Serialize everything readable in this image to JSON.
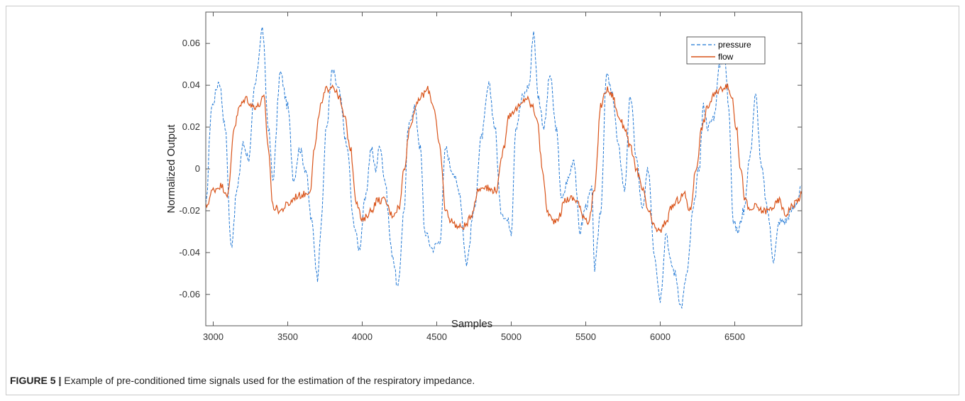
{
  "figure": {
    "label": "FIGURE 5 |",
    "caption": "Example of pre-conditioned time signals used for the estimation of the respiratory impedance."
  },
  "chart_data": {
    "type": "line",
    "title": "",
    "xlabel": "Samples",
    "ylabel": "Normalized Output",
    "xlim": [
      2950,
      6950
    ],
    "ylim": [
      -0.075,
      0.075
    ],
    "xticks": [
      3000,
      3500,
      4000,
      4500,
      5000,
      5500,
      6000,
      6500
    ],
    "yticks": [
      -0.06,
      -0.04,
      -0.02,
      0,
      0.02,
      0.04,
      0.06
    ],
    "ytick_labels": [
      "-0.06",
      "-0.04",
      "-0.02",
      "0",
      "0.02",
      "0.04",
      "0.06"
    ],
    "grid": false,
    "legend_position": "top-right",
    "series": [
      {
        "name": "pressure",
        "color": "#1f77d4",
        "style": "dashed",
        "x": [
          2950,
          2990,
          3040,
          3080,
          3120,
          3160,
          3200,
          3240,
          3280,
          3330,
          3370,
          3400,
          3450,
          3500,
          3540,
          3580,
          3620,
          3660,
          3700,
          3720,
          3760,
          3800,
          3840,
          3900,
          3940,
          3980,
          4020,
          4060,
          4090,
          4120,
          4150,
          4200,
          4240,
          4280,
          4310,
          4350,
          4390,
          4420,
          4470,
          4520,
          4560,
          4600,
          4650,
          4700,
          4750,
          4800,
          4850,
          4890,
          4930,
          4980,
          5000,
          5030,
          5080,
          5120,
          5150,
          5180,
          5220,
          5260,
          5300,
          5340,
          5380,
          5420,
          5460,
          5500,
          5540,
          5560,
          5600,
          5640,
          5680,
          5720,
          5760,
          5800,
          5840,
          5880,
          5920,
          5960,
          6000,
          6040,
          6070,
          6100,
          6140,
          6180,
          6220,
          6260,
          6290,
          6320,
          6360,
          6400,
          6430,
          6460,
          6490,
          6520,
          6560,
          6600,
          6640,
          6680,
          6720,
          6760,
          6800,
          6840,
          6880,
          6920,
          6950
        ],
        "values": [
          -0.018,
          0.03,
          0.042,
          0.02,
          -0.037,
          -0.01,
          0.012,
          0.005,
          0.04,
          0.067,
          0.02,
          -0.005,
          0.046,
          0.03,
          -0.005,
          0.01,
          0.0,
          -0.025,
          -0.052,
          -0.03,
          0.02,
          0.047,
          0.038,
          0.01,
          -0.025,
          -0.038,
          -0.015,
          0.01,
          0.0,
          0.012,
          -0.005,
          -0.04,
          -0.057,
          -0.02,
          0.02,
          0.03,
          0.01,
          -0.03,
          -0.038,
          -0.035,
          0.01,
          0.0,
          -0.01,
          -0.045,
          -0.02,
          0.015,
          0.04,
          0.02,
          -0.02,
          -0.025,
          -0.03,
          0.02,
          0.035,
          0.04,
          0.066,
          0.035,
          0.02,
          0.045,
          0.02,
          -0.015,
          -0.005,
          0.005,
          -0.03,
          -0.018,
          -0.01,
          -0.048,
          -0.02,
          0.045,
          0.035,
          0.01,
          -0.01,
          0.035,
          0.005,
          -0.02,
          0.0,
          -0.04,
          -0.062,
          -0.03,
          -0.045,
          -0.05,
          -0.066,
          -0.05,
          -0.02,
          0.0,
          0.03,
          0.02,
          0.025,
          0.05,
          0.055,
          0.03,
          -0.025,
          -0.03,
          -0.02,
          0.005,
          0.035,
          0.0,
          -0.02,
          -0.043,
          -0.025,
          -0.025,
          -0.02,
          -0.015,
          -0.008
        ]
      },
      {
        "name": "flow",
        "color": "#d95319",
        "style": "solid",
        "x": [
          2950,
          3000,
          3050,
          3100,
          3140,
          3180,
          3220,
          3260,
          3300,
          3340,
          3370,
          3400,
          3450,
          3500,
          3560,
          3620,
          3650,
          3680,
          3720,
          3760,
          3800,
          3840,
          3880,
          3920,
          3960,
          4000,
          4060,
          4100,
          4150,
          4200,
          4250,
          4280,
          4320,
          4360,
          4400,
          4440,
          4480,
          4520,
          4560,
          4600,
          4650,
          4700,
          4730,
          4780,
          4820,
          4860,
          4900,
          4950,
          4980,
          5020,
          5060,
          5100,
          5140,
          5170,
          5210,
          5240,
          5280,
          5320,
          5360,
          5400,
          5440,
          5480,
          5520,
          5560,
          5600,
          5640,
          5680,
          5720,
          5760,
          5800,
          5840,
          5880,
          5920,
          5960,
          6000,
          6040,
          6080,
          6120,
          6160,
          6200,
          6240,
          6280,
          6320,
          6360,
          6400,
          6440,
          6480,
          6510,
          6540,
          6570,
          6600,
          6640,
          6680,
          6720,
          6760,
          6800,
          6840,
          6880,
          6920,
          6950
        ],
        "values": [
          -0.018,
          -0.01,
          -0.008,
          -0.012,
          0.02,
          0.03,
          0.034,
          0.03,
          0.03,
          0.034,
          0.01,
          -0.018,
          -0.02,
          -0.017,
          -0.013,
          -0.012,
          -0.01,
          0.01,
          0.03,
          0.038,
          0.04,
          0.035,
          0.025,
          0.01,
          -0.015,
          -0.025,
          -0.02,
          -0.015,
          -0.015,
          -0.022,
          -0.018,
          0.0,
          0.02,
          0.03,
          0.035,
          0.038,
          0.03,
          0.01,
          -0.02,
          -0.025,
          -0.028,
          -0.027,
          -0.022,
          -0.01,
          -0.008,
          -0.01,
          -0.01,
          0.01,
          0.025,
          0.028,
          0.03,
          0.034,
          0.03,
          0.025,
          0.0,
          -0.02,
          -0.025,
          -0.023,
          -0.015,
          -0.014,
          -0.015,
          -0.022,
          -0.025,
          -0.01,
          0.03,
          0.038,
          0.035,
          0.025,
          0.02,
          0.01,
          0.0,
          -0.01,
          -0.02,
          -0.028,
          -0.03,
          -0.025,
          -0.018,
          -0.015,
          -0.012,
          -0.02,
          0.0,
          0.02,
          0.03,
          0.035,
          0.038,
          0.04,
          0.035,
          0.02,
          0.0,
          -0.015,
          -0.02,
          -0.018,
          -0.02,
          -0.02,
          -0.018,
          -0.015,
          -0.022,
          -0.018,
          -0.015,
          -0.012
        ]
      }
    ]
  }
}
